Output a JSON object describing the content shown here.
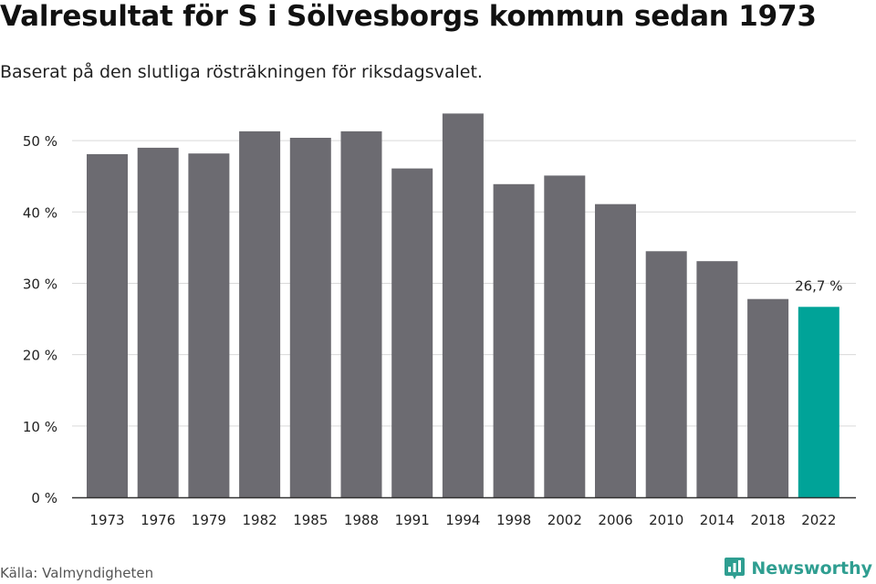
{
  "title": "Valresultat för S i Sölvesborgs kommun sedan 1973",
  "subtitle": "Baserat på den slutliga rösträkningen för riksdagsvalet.",
  "source": "Källa: Valmyndigheten",
  "brand": {
    "name": "Newsworthy",
    "logo_icon": "newsworthy-logo-icon",
    "color": "#2f9e91"
  },
  "colors": {
    "bar": "#6c6b71",
    "highlight": "#00a398",
    "grid": "#d9d9d9",
    "axis": "#333333",
    "text": "#222222"
  },
  "chart_data": {
    "type": "bar",
    "title": "Valresultat för S i Sölvesborgs kommun sedan 1973",
    "subtitle": "Baserat på den slutliga rösträkningen för riksdagsvalet.",
    "xlabel": "",
    "ylabel": "",
    "categories": [
      "1973",
      "1976",
      "1979",
      "1982",
      "1985",
      "1988",
      "1991",
      "1994",
      "1998",
      "2002",
      "2006",
      "2010",
      "2014",
      "2018",
      "2022"
    ],
    "values": [
      48.1,
      49.0,
      48.2,
      51.3,
      50.4,
      51.3,
      46.1,
      53.8,
      43.9,
      45.1,
      41.1,
      34.5,
      33.1,
      27.8,
      26.7
    ],
    "highlight_index": 14,
    "annotations": [
      {
        "category": "2022",
        "text": "26,7 %"
      }
    ],
    "ylim": [
      0,
      55
    ],
    "yticks": [
      0,
      10,
      20,
      30,
      40,
      50
    ],
    "ytick_labels": [
      "0 %",
      "10 %",
      "20 %",
      "30 %",
      "40 %",
      "50 %"
    ],
    "grid": true,
    "legend": "none"
  }
}
